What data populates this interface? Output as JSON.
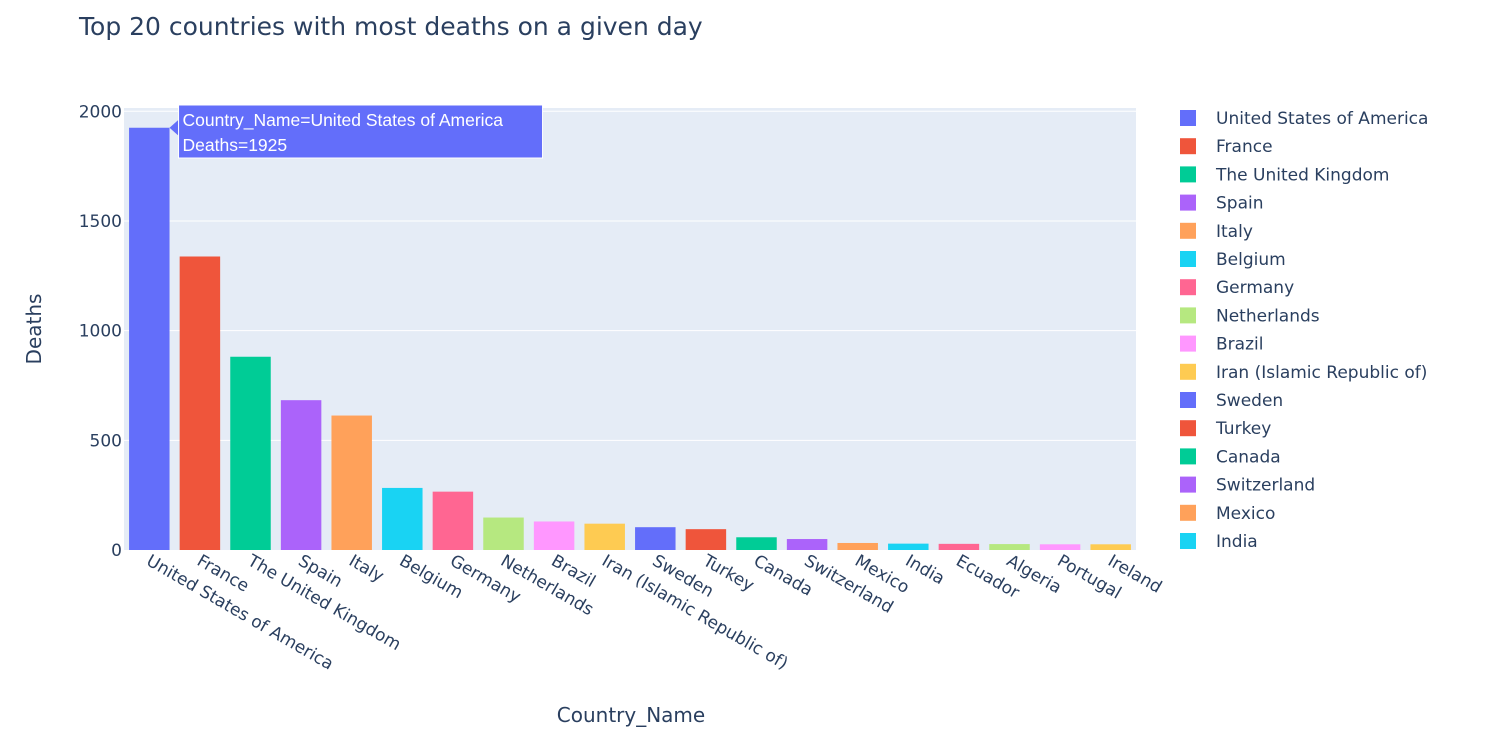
{
  "chart_data": {
    "type": "bar",
    "title": "Top 20 countries with most deaths on a given day",
    "xlabel": "Country_Name",
    "ylabel": "Deaths",
    "ylim": [
      0,
      2000
    ],
    "yticks": [
      0,
      500,
      1000,
      1500,
      2000
    ],
    "grid": true,
    "legend_position": "right",
    "categories": [
      "United States of America",
      "France",
      "The United Kingdom",
      "Spain",
      "Italy",
      "Belgium",
      "Germany",
      "Netherlands",
      "Brazil",
      "Iran (Islamic Republic of)",
      "Sweden",
      "Turkey",
      "Canada",
      "Switzerland",
      "Mexico",
      "India",
      "Ecuador",
      "Algeria",
      "Portugal",
      "Ireland"
    ],
    "values": [
      1925,
      1338,
      881,
      683,
      613,
      283,
      266,
      148,
      130,
      120,
      104,
      95,
      58,
      50,
      32,
      29,
      28,
      27,
      26,
      26
    ],
    "colors": [
      "#636efa",
      "#EF553B",
      "#00cc96",
      "#ab63fa",
      "#FFA15A",
      "#19d3f3",
      "#FF6692",
      "#B6E880",
      "#FF97FF",
      "#FECB52",
      "#636efa",
      "#EF553B",
      "#00cc96",
      "#ab63fa",
      "#FFA15A",
      "#19d3f3",
      "#FF6692",
      "#B6E880",
      "#FF97FF",
      "#FECB52"
    ],
    "legend": [
      "United States of America",
      "France",
      "The United Kingdom",
      "Spain",
      "Italy",
      "Belgium",
      "Germany",
      "Netherlands",
      "Brazil",
      "Iran (Islamic Republic of)",
      "Sweden",
      "Turkey",
      "Canada",
      "Switzerland",
      "Mexico",
      "India"
    ],
    "hover": {
      "category_index": 0,
      "line1": "Country_Name=United States of America",
      "line2": "Deaths=1925"
    }
  }
}
